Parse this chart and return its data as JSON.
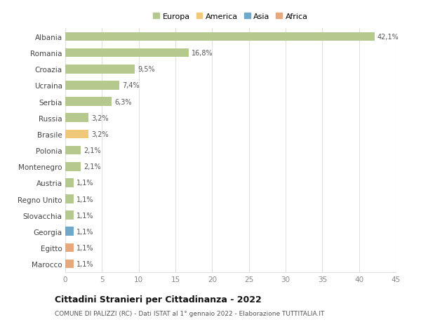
{
  "countries": [
    "Albania",
    "Romania",
    "Croazia",
    "Ucraina",
    "Serbia",
    "Russia",
    "Brasile",
    "Polonia",
    "Montenegro",
    "Austria",
    "Regno Unito",
    "Slovacchia",
    "Georgia",
    "Egitto",
    "Marocco"
  ],
  "values": [
    42.1,
    16.8,
    9.5,
    7.4,
    6.3,
    3.2,
    3.2,
    2.1,
    2.1,
    1.1,
    1.1,
    1.1,
    1.1,
    1.1,
    1.1
  ],
  "labels": [
    "42,1%",
    "16,8%",
    "9,5%",
    "7,4%",
    "6,3%",
    "3,2%",
    "3,2%",
    "2,1%",
    "2,1%",
    "1,1%",
    "1,1%",
    "1,1%",
    "1,1%",
    "1,1%",
    "1,1%"
  ],
  "colors": [
    "#b5c98e",
    "#b5c98e",
    "#b5c98e",
    "#b5c98e",
    "#b5c98e",
    "#b5c98e",
    "#f0c87a",
    "#b5c98e",
    "#b5c98e",
    "#b5c98e",
    "#b5c98e",
    "#b5c98e",
    "#6fa8c8",
    "#e8a87c",
    "#e8a87c"
  ],
  "legend_labels": [
    "Europa",
    "America",
    "Asia",
    "Africa"
  ],
  "legend_colors": [
    "#b5c98e",
    "#f0c87a",
    "#6fa8c8",
    "#e8a87c"
  ],
  "title": "Cittadini Stranieri per Cittadinanza - 2022",
  "subtitle": "COMUNE DI PALIZZI (RC) - Dati ISTAT al 1° gennaio 2022 - Elaborazione TUTTITALIA.IT",
  "xlim": [
    0,
    45
  ],
  "xticks": [
    0,
    5,
    10,
    15,
    20,
    25,
    30,
    35,
    40,
    45
  ],
  "bg_color": "#ffffff",
  "grid_color": "#e0e0e0",
  "bar_height": 0.55
}
